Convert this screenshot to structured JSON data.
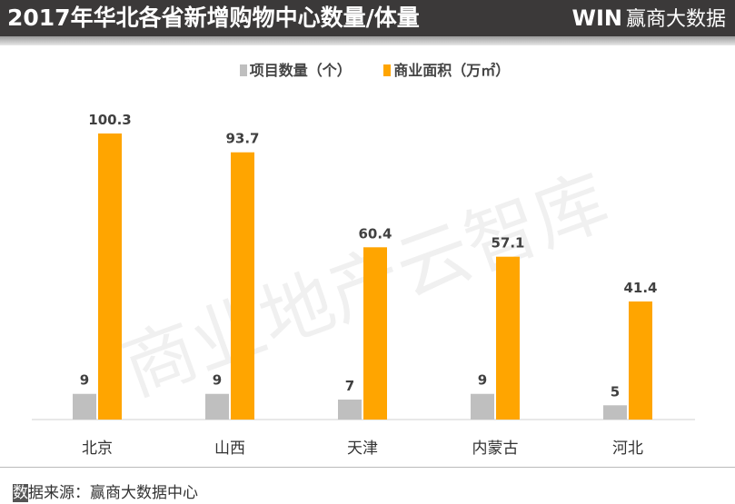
{
  "header": {
    "title": "2017年华北各省新增购物中心数量/体量",
    "logo_mark": "WIN",
    "logo_text": "赢商大数据"
  },
  "watermark": "商业地产云智库",
  "chart_data": {
    "type": "bar",
    "categories": [
      "北京",
      "山西",
      "天津",
      "内蒙古",
      "河北"
    ],
    "series": [
      {
        "name": "项目数量（个）",
        "color": "#bfbfbf",
        "values": [
          9,
          9,
          7,
          9,
          5
        ]
      },
      {
        "name": "商业面积（万㎡）",
        "color": "#ffa500",
        "values": [
          100.3,
          93.7,
          60.4,
          57.1,
          41.4
        ]
      }
    ],
    "legend_position": "top",
    "grid": false,
    "ylim": [
      0,
      100.3
    ]
  },
  "footer": {
    "source_first": "数",
    "source_rest": "据来源：赢商大数据中心"
  }
}
